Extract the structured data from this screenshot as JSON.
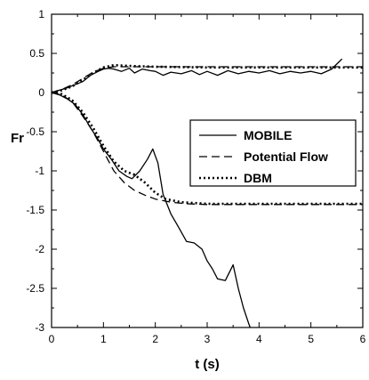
{
  "chart_data": {
    "type": "line",
    "xlabel": "t (s)",
    "ylabel": "Fr",
    "xlim": [
      0,
      6
    ],
    "ylim": [
      -3,
      1
    ],
    "xticks": [
      0,
      1,
      2,
      3,
      4,
      5,
      6
    ],
    "yticks": [
      1,
      0.5,
      0,
      -0.5,
      -1,
      -1.5,
      -2,
      -2.5,
      -3
    ],
    "ytick_labels": [
      "1",
      "0.5",
      "0",
      "-0.5",
      "-1",
      "-1.5",
      "-2",
      "-2.5",
      "-3"
    ],
    "xtick_labels": [
      "0",
      "1",
      "2",
      "3",
      "4",
      "5",
      "6"
    ],
    "grid": false,
    "legend_position": "center-right",
    "series": [
      {
        "name": "MOBILE",
        "style": "solid",
        "color": "#000000",
        "values": [
          [
            0,
            0
          ],
          [
            0.15,
            0.03
          ],
          [
            0.3,
            0.06
          ],
          [
            0.45,
            0.1
          ],
          [
            0.6,
            0.14
          ],
          [
            0.75,
            0.22
          ],
          [
            0.9,
            0.27
          ],
          [
            1.0,
            0.3
          ],
          [
            1.1,
            0.31
          ],
          [
            1.2,
            0.3
          ],
          [
            1.35,
            0.27
          ],
          [
            1.5,
            0.31
          ],
          [
            1.6,
            0.25
          ],
          [
            1.75,
            0.3
          ],
          [
            1.9,
            0.28
          ],
          [
            2.0,
            0.27
          ],
          [
            2.15,
            0.22
          ],
          [
            2.3,
            0.26
          ],
          [
            2.5,
            0.24
          ],
          [
            2.7,
            0.28
          ],
          [
            2.85,
            0.23
          ],
          [
            3.0,
            0.27
          ],
          [
            3.2,
            0.22
          ],
          [
            3.4,
            0.28
          ],
          [
            3.6,
            0.24
          ],
          [
            3.8,
            0.27
          ],
          [
            4.0,
            0.25
          ],
          [
            4.2,
            0.28
          ],
          [
            4.4,
            0.24
          ],
          [
            4.6,
            0.27
          ],
          [
            4.8,
            0.25
          ],
          [
            5.0,
            0.27
          ],
          [
            5.2,
            0.24
          ],
          [
            5.4,
            0.3
          ],
          [
            5.6,
            0.43
          ]
        ]
      },
      {
        "name": "MOBILE",
        "style": "solid",
        "color": "#000000",
        "values": [
          [
            0,
            0
          ],
          [
            0.15,
            -0.03
          ],
          [
            0.3,
            -0.08
          ],
          [
            0.45,
            -0.15
          ],
          [
            0.6,
            -0.28
          ],
          [
            0.75,
            -0.45
          ],
          [
            0.9,
            -0.6
          ],
          [
            1.0,
            -0.72
          ],
          [
            1.15,
            -0.85
          ],
          [
            1.3,
            -1.0
          ],
          [
            1.45,
            -1.07
          ],
          [
            1.55,
            -1.1
          ],
          [
            1.7,
            -1.0
          ],
          [
            1.85,
            -0.85
          ],
          [
            1.95,
            -0.72
          ],
          [
            2.05,
            -0.9
          ],
          [
            2.15,
            -1.3
          ],
          [
            2.3,
            -1.55
          ],
          [
            2.45,
            -1.72
          ],
          [
            2.6,
            -1.9
          ],
          [
            2.75,
            -1.92
          ],
          [
            2.9,
            -2.0
          ],
          [
            3.0,
            -2.15
          ],
          [
            3.1,
            -2.25
          ],
          [
            3.2,
            -2.38
          ],
          [
            3.35,
            -2.4
          ],
          [
            3.5,
            -2.2
          ],
          [
            3.6,
            -2.5
          ],
          [
            3.7,
            -2.75
          ],
          [
            3.8,
            -2.95
          ],
          [
            3.83,
            -3.0
          ]
        ]
      },
      {
        "name": "Potential Flow",
        "style": "dashed",
        "color": "#000000",
        "values": [
          [
            0,
            0
          ],
          [
            0.2,
            0.04
          ],
          [
            0.4,
            0.1
          ],
          [
            0.6,
            0.18
          ],
          [
            0.8,
            0.26
          ],
          [
            1.0,
            0.31
          ],
          [
            1.2,
            0.33
          ],
          [
            1.5,
            0.33
          ],
          [
            2.0,
            0.33
          ],
          [
            3.0,
            0.33
          ],
          [
            4.0,
            0.33
          ],
          [
            5.0,
            0.33
          ],
          [
            6.0,
            0.33
          ]
        ]
      },
      {
        "name": "Potential Flow",
        "style": "dashed",
        "color": "#000000",
        "values": [
          [
            0,
            0
          ],
          [
            0.2,
            -0.03
          ],
          [
            0.4,
            -0.12
          ],
          [
            0.6,
            -0.3
          ],
          [
            0.8,
            -0.5
          ],
          [
            1.0,
            -0.75
          ],
          [
            1.2,
            -1.0
          ],
          [
            1.4,
            -1.15
          ],
          [
            1.6,
            -1.25
          ],
          [
            1.8,
            -1.31
          ],
          [
            2.0,
            -1.36
          ],
          [
            2.3,
            -1.4
          ],
          [
            2.6,
            -1.42
          ],
          [
            3.0,
            -1.43
          ],
          [
            4.0,
            -1.43
          ],
          [
            5.0,
            -1.43
          ],
          [
            6.0,
            -1.43
          ]
        ]
      },
      {
        "name": "DBM",
        "style": "dotted",
        "color": "#000000",
        "values": [
          [
            0,
            0
          ],
          [
            0.2,
            0.03
          ],
          [
            0.4,
            0.08
          ],
          [
            0.6,
            0.16
          ],
          [
            0.8,
            0.25
          ],
          [
            1.0,
            0.32
          ],
          [
            1.2,
            0.35
          ],
          [
            1.5,
            0.34
          ],
          [
            2.0,
            0.33
          ],
          [
            3.0,
            0.32
          ],
          [
            4.0,
            0.32
          ],
          [
            5.0,
            0.32
          ],
          [
            6.0,
            0.32
          ]
        ]
      },
      {
        "name": "DBM",
        "style": "dotted",
        "color": "#000000",
        "values": [
          [
            0,
            0
          ],
          [
            0.2,
            -0.02
          ],
          [
            0.4,
            -0.1
          ],
          [
            0.6,
            -0.25
          ],
          [
            0.8,
            -0.45
          ],
          [
            1.0,
            -0.68
          ],
          [
            1.2,
            -0.88
          ],
          [
            1.4,
            -1.0
          ],
          [
            1.6,
            -1.05
          ],
          [
            1.8,
            -1.15
          ],
          [
            2.0,
            -1.28
          ],
          [
            2.2,
            -1.36
          ],
          [
            2.5,
            -1.4
          ],
          [
            3.0,
            -1.42
          ],
          [
            4.0,
            -1.42
          ],
          [
            5.0,
            -1.42
          ],
          [
            6.0,
            -1.42
          ]
        ]
      }
    ],
    "legend": [
      {
        "label": "MOBILE",
        "style": "solid"
      },
      {
        "label": "Potential Flow",
        "style": "dashed"
      },
      {
        "label": "DBM",
        "style": "dotted"
      }
    ]
  }
}
